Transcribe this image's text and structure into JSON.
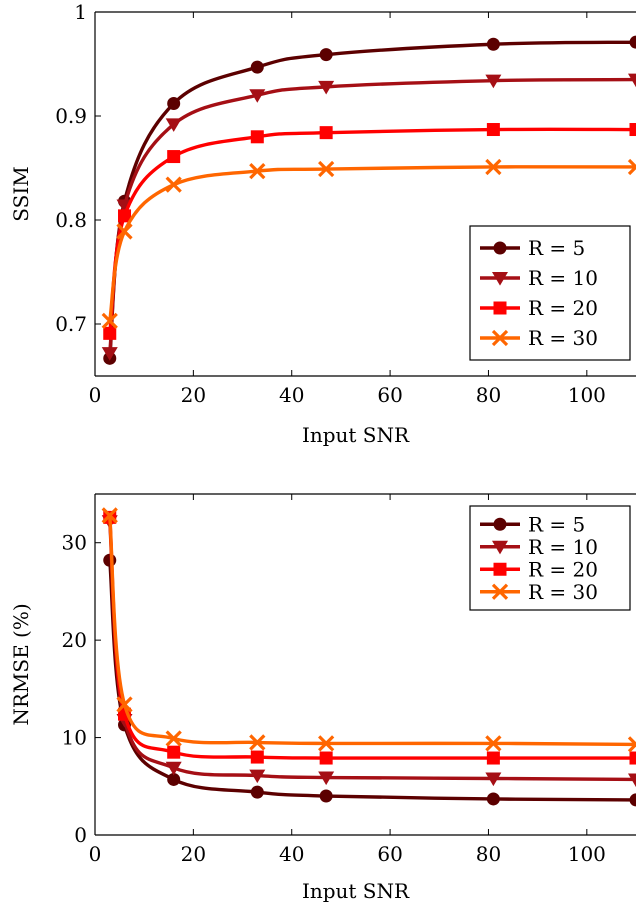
{
  "chart_data": [
    {
      "type": "line",
      "title": "",
      "xlabel": "Input SNR",
      "ylabel": "SSIM",
      "xlim": [
        0,
        110
      ],
      "ylim": [
        0.65,
        1.0
      ],
      "xticks": [
        "0",
        "20",
        "40",
        "60",
        "80",
        "100"
      ],
      "yticks": [
        "0.7",
        "0.8",
        "0.9",
        "1"
      ],
      "legend_position": "bottom-right",
      "grid": false,
      "x": [
        3,
        6,
        16,
        33,
        47,
        81,
        110
      ],
      "series": [
        {
          "name": "R = 5",
          "color": "#5c0000",
          "marker": "circle",
          "values": [
            0.667,
            0.818,
            0.912,
            0.947,
            0.959,
            0.969,
            0.971
          ]
        },
        {
          "name": "R = 10",
          "color": "#a50f15",
          "marker": "triangle-down",
          "values": [
            0.672,
            0.814,
            0.892,
            0.92,
            0.928,
            0.934,
            0.935
          ]
        },
        {
          "name": "R = 20",
          "color": "#ff0000",
          "marker": "square",
          "values": [
            0.691,
            0.804,
            0.861,
            0.88,
            0.884,
            0.887,
            0.887
          ]
        },
        {
          "name": "R = 30",
          "color": "#ff6600",
          "marker": "x",
          "values": [
            0.703,
            0.789,
            0.834,
            0.847,
            0.849,
            0.851,
            0.851
          ]
        }
      ]
    },
    {
      "type": "line",
      "title": "",
      "xlabel": "Input SNR",
      "ylabel": "NRMSE (%)",
      "xlim": [
        0,
        110
      ],
      "ylim": [
        0,
        35
      ],
      "xticks": [
        "0",
        "20",
        "40",
        "60",
        "80",
        "100"
      ],
      "yticks": [
        "0",
        "10",
        "20",
        "30"
      ],
      "legend_position": "top-right",
      "grid": false,
      "x": [
        3,
        6,
        16,
        33,
        47,
        81,
        110
      ],
      "series": [
        {
          "name": "R = 5",
          "color": "#5c0000",
          "marker": "circle",
          "values": [
            28.2,
            11.3,
            5.7,
            4.4,
            4.0,
            3.7,
            3.6
          ]
        },
        {
          "name": "R = 10",
          "color": "#a50f15",
          "marker": "triangle-down",
          "values": [
            32.2,
            11.8,
            6.9,
            6.1,
            5.9,
            5.8,
            5.7
          ]
        },
        {
          "name": "R = 20",
          "color": "#ff0000",
          "marker": "square",
          "values": [
            32.6,
            12.4,
            8.5,
            8.0,
            7.9,
            7.9,
            7.9
          ]
        },
        {
          "name": "R = 30",
          "color": "#ff6600",
          "marker": "x",
          "values": [
            32.8,
            13.4,
            9.9,
            9.5,
            9.4,
            9.4,
            9.3
          ]
        }
      ]
    }
  ]
}
